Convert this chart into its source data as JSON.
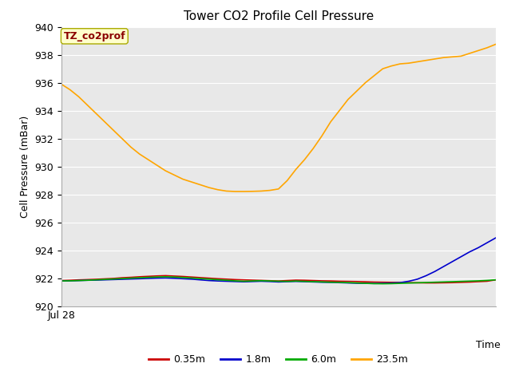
{
  "title": "Tower CO2 Profile Cell Pressure",
  "xlabel": "Time",
  "ylabel": "Cell Pressure (mBar)",
  "xlim": [
    0,
    1.0
  ],
  "ylim": [
    920,
    940
  ],
  "yticks": [
    920,
    922,
    924,
    926,
    928,
    930,
    932,
    934,
    936,
    938,
    940
  ],
  "x_start_label": "Jul 28",
  "annotation_text": "TZ_co2prof",
  "annotation_color": "#8B0000",
  "annotation_bg": "#FFFFCC",
  "annotation_edge": "#AAAA00",
  "bg_color": "#E8E8E8",
  "grid_color": "#FFFFFF",
  "title_fontsize": 11,
  "label_fontsize": 9,
  "tick_fontsize": 9,
  "series_order": [
    "0.35m",
    "1.8m",
    "6.0m",
    "23.5m"
  ],
  "series": {
    "0.35m": {
      "color": "#CC0000",
      "x": [
        0.0,
        0.02,
        0.04,
        0.06,
        0.08,
        0.1,
        0.12,
        0.14,
        0.16,
        0.18,
        0.2,
        0.22,
        0.24,
        0.26,
        0.28,
        0.3,
        0.32,
        0.34,
        0.36,
        0.38,
        0.4,
        0.42,
        0.44,
        0.46,
        0.48,
        0.5,
        0.52,
        0.54,
        0.56,
        0.58,
        0.6,
        0.62,
        0.64,
        0.66,
        0.68,
        0.7,
        0.72,
        0.74,
        0.76,
        0.78,
        0.8,
        0.82,
        0.84,
        0.86,
        0.88,
        0.9,
        0.92,
        0.94,
        0.96,
        0.98,
        1.0
      ],
      "y": [
        921.85,
        921.87,
        921.9,
        921.92,
        921.94,
        921.97,
        922.0,
        922.05,
        922.08,
        922.12,
        922.15,
        922.18,
        922.2,
        922.17,
        922.14,
        922.1,
        922.06,
        922.02,
        921.98,
        921.95,
        921.92,
        921.9,
        921.88,
        921.86,
        921.84,
        921.82,
        921.85,
        921.88,
        921.87,
        921.85,
        921.83,
        921.82,
        921.8,
        921.79,
        921.78,
        921.76,
        921.74,
        921.73,
        921.72,
        921.71,
        921.7,
        921.69,
        921.68,
        921.68,
        921.69,
        921.7,
        921.72,
        921.74,
        921.77,
        921.8,
        921.9
      ]
    },
    "1.8m": {
      "color": "#0000CC",
      "x": [
        0.0,
        0.02,
        0.04,
        0.06,
        0.08,
        0.1,
        0.12,
        0.14,
        0.16,
        0.18,
        0.2,
        0.22,
        0.24,
        0.26,
        0.28,
        0.3,
        0.32,
        0.34,
        0.36,
        0.38,
        0.4,
        0.42,
        0.44,
        0.46,
        0.48,
        0.5,
        0.52,
        0.54,
        0.56,
        0.58,
        0.6,
        0.62,
        0.64,
        0.66,
        0.68,
        0.7,
        0.72,
        0.74,
        0.76,
        0.78,
        0.8,
        0.82,
        0.84,
        0.86,
        0.88,
        0.9,
        0.92,
        0.94,
        0.96,
        0.98,
        1.0
      ],
      "y": [
        921.82,
        921.83,
        921.85,
        921.87,
        921.88,
        921.9,
        921.92,
        921.94,
        921.96,
        921.98,
        922.0,
        922.02,
        922.03,
        922.01,
        921.98,
        921.95,
        921.9,
        921.85,
        921.82,
        921.8,
        921.78,
        921.76,
        921.78,
        921.8,
        921.78,
        921.75,
        921.77,
        921.79,
        921.77,
        921.75,
        921.73,
        921.72,
        921.7,
        921.68,
        921.66,
        921.65,
        921.64,
        921.65,
        921.67,
        921.7,
        921.8,
        921.95,
        922.2,
        922.5,
        922.85,
        923.2,
        923.55,
        923.9,
        924.2,
        924.55,
        924.9
      ]
    },
    "6.0m": {
      "color": "#00AA00",
      "x": [
        0.0,
        0.02,
        0.04,
        0.06,
        0.08,
        0.1,
        0.12,
        0.14,
        0.16,
        0.18,
        0.2,
        0.22,
        0.24,
        0.26,
        0.28,
        0.3,
        0.32,
        0.34,
        0.36,
        0.38,
        0.4,
        0.42,
        0.44,
        0.46,
        0.48,
        0.5,
        0.52,
        0.54,
        0.56,
        0.58,
        0.6,
        0.62,
        0.64,
        0.66,
        0.68,
        0.7,
        0.72,
        0.74,
        0.76,
        0.78,
        0.8,
        0.82,
        0.84,
        0.86,
        0.88,
        0.9,
        0.92,
        0.94,
        0.96,
        0.98,
        1.0
      ],
      "y": [
        921.82,
        921.83,
        921.85,
        921.87,
        921.9,
        921.93,
        921.96,
        921.99,
        922.02,
        922.05,
        922.08,
        922.1,
        922.12,
        922.1,
        922.07,
        922.03,
        921.99,
        921.95,
        921.91,
        921.87,
        921.83,
        921.8,
        921.82,
        921.84,
        921.82,
        921.8,
        921.79,
        921.81,
        921.79,
        921.77,
        921.75,
        921.73,
        921.72,
        921.7,
        921.68,
        921.65,
        921.63,
        921.62,
        921.63,
        921.65,
        921.67,
        921.69,
        921.71,
        921.73,
        921.75,
        921.77,
        921.79,
        921.81,
        921.83,
        921.86,
        921.9
      ]
    },
    "23.5m": {
      "color": "#FFA500",
      "x": [
        0.0,
        0.02,
        0.04,
        0.06,
        0.08,
        0.1,
        0.12,
        0.14,
        0.16,
        0.18,
        0.2,
        0.22,
        0.24,
        0.26,
        0.28,
        0.3,
        0.32,
        0.34,
        0.36,
        0.38,
        0.4,
        0.42,
        0.44,
        0.46,
        0.48,
        0.5,
        0.52,
        0.54,
        0.56,
        0.58,
        0.6,
        0.62,
        0.64,
        0.66,
        0.68,
        0.7,
        0.72,
        0.74,
        0.76,
        0.78,
        0.8,
        0.82,
        0.84,
        0.86,
        0.88,
        0.9,
        0.92,
        0.94,
        0.96,
        0.98,
        1.0
      ],
      "y": [
        935.9,
        935.5,
        935.0,
        934.4,
        933.8,
        933.2,
        932.6,
        932.0,
        931.4,
        930.9,
        930.5,
        930.1,
        929.7,
        929.4,
        929.1,
        928.9,
        928.7,
        928.5,
        928.35,
        928.25,
        928.22,
        928.22,
        928.23,
        928.25,
        928.3,
        928.4,
        929.0,
        929.8,
        930.5,
        931.3,
        932.2,
        933.2,
        934.0,
        934.8,
        935.4,
        936.0,
        936.5,
        937.0,
        937.2,
        937.35,
        937.4,
        937.5,
        937.6,
        937.7,
        937.8,
        937.85,
        937.9,
        938.1,
        938.3,
        938.5,
        938.75
      ]
    }
  }
}
